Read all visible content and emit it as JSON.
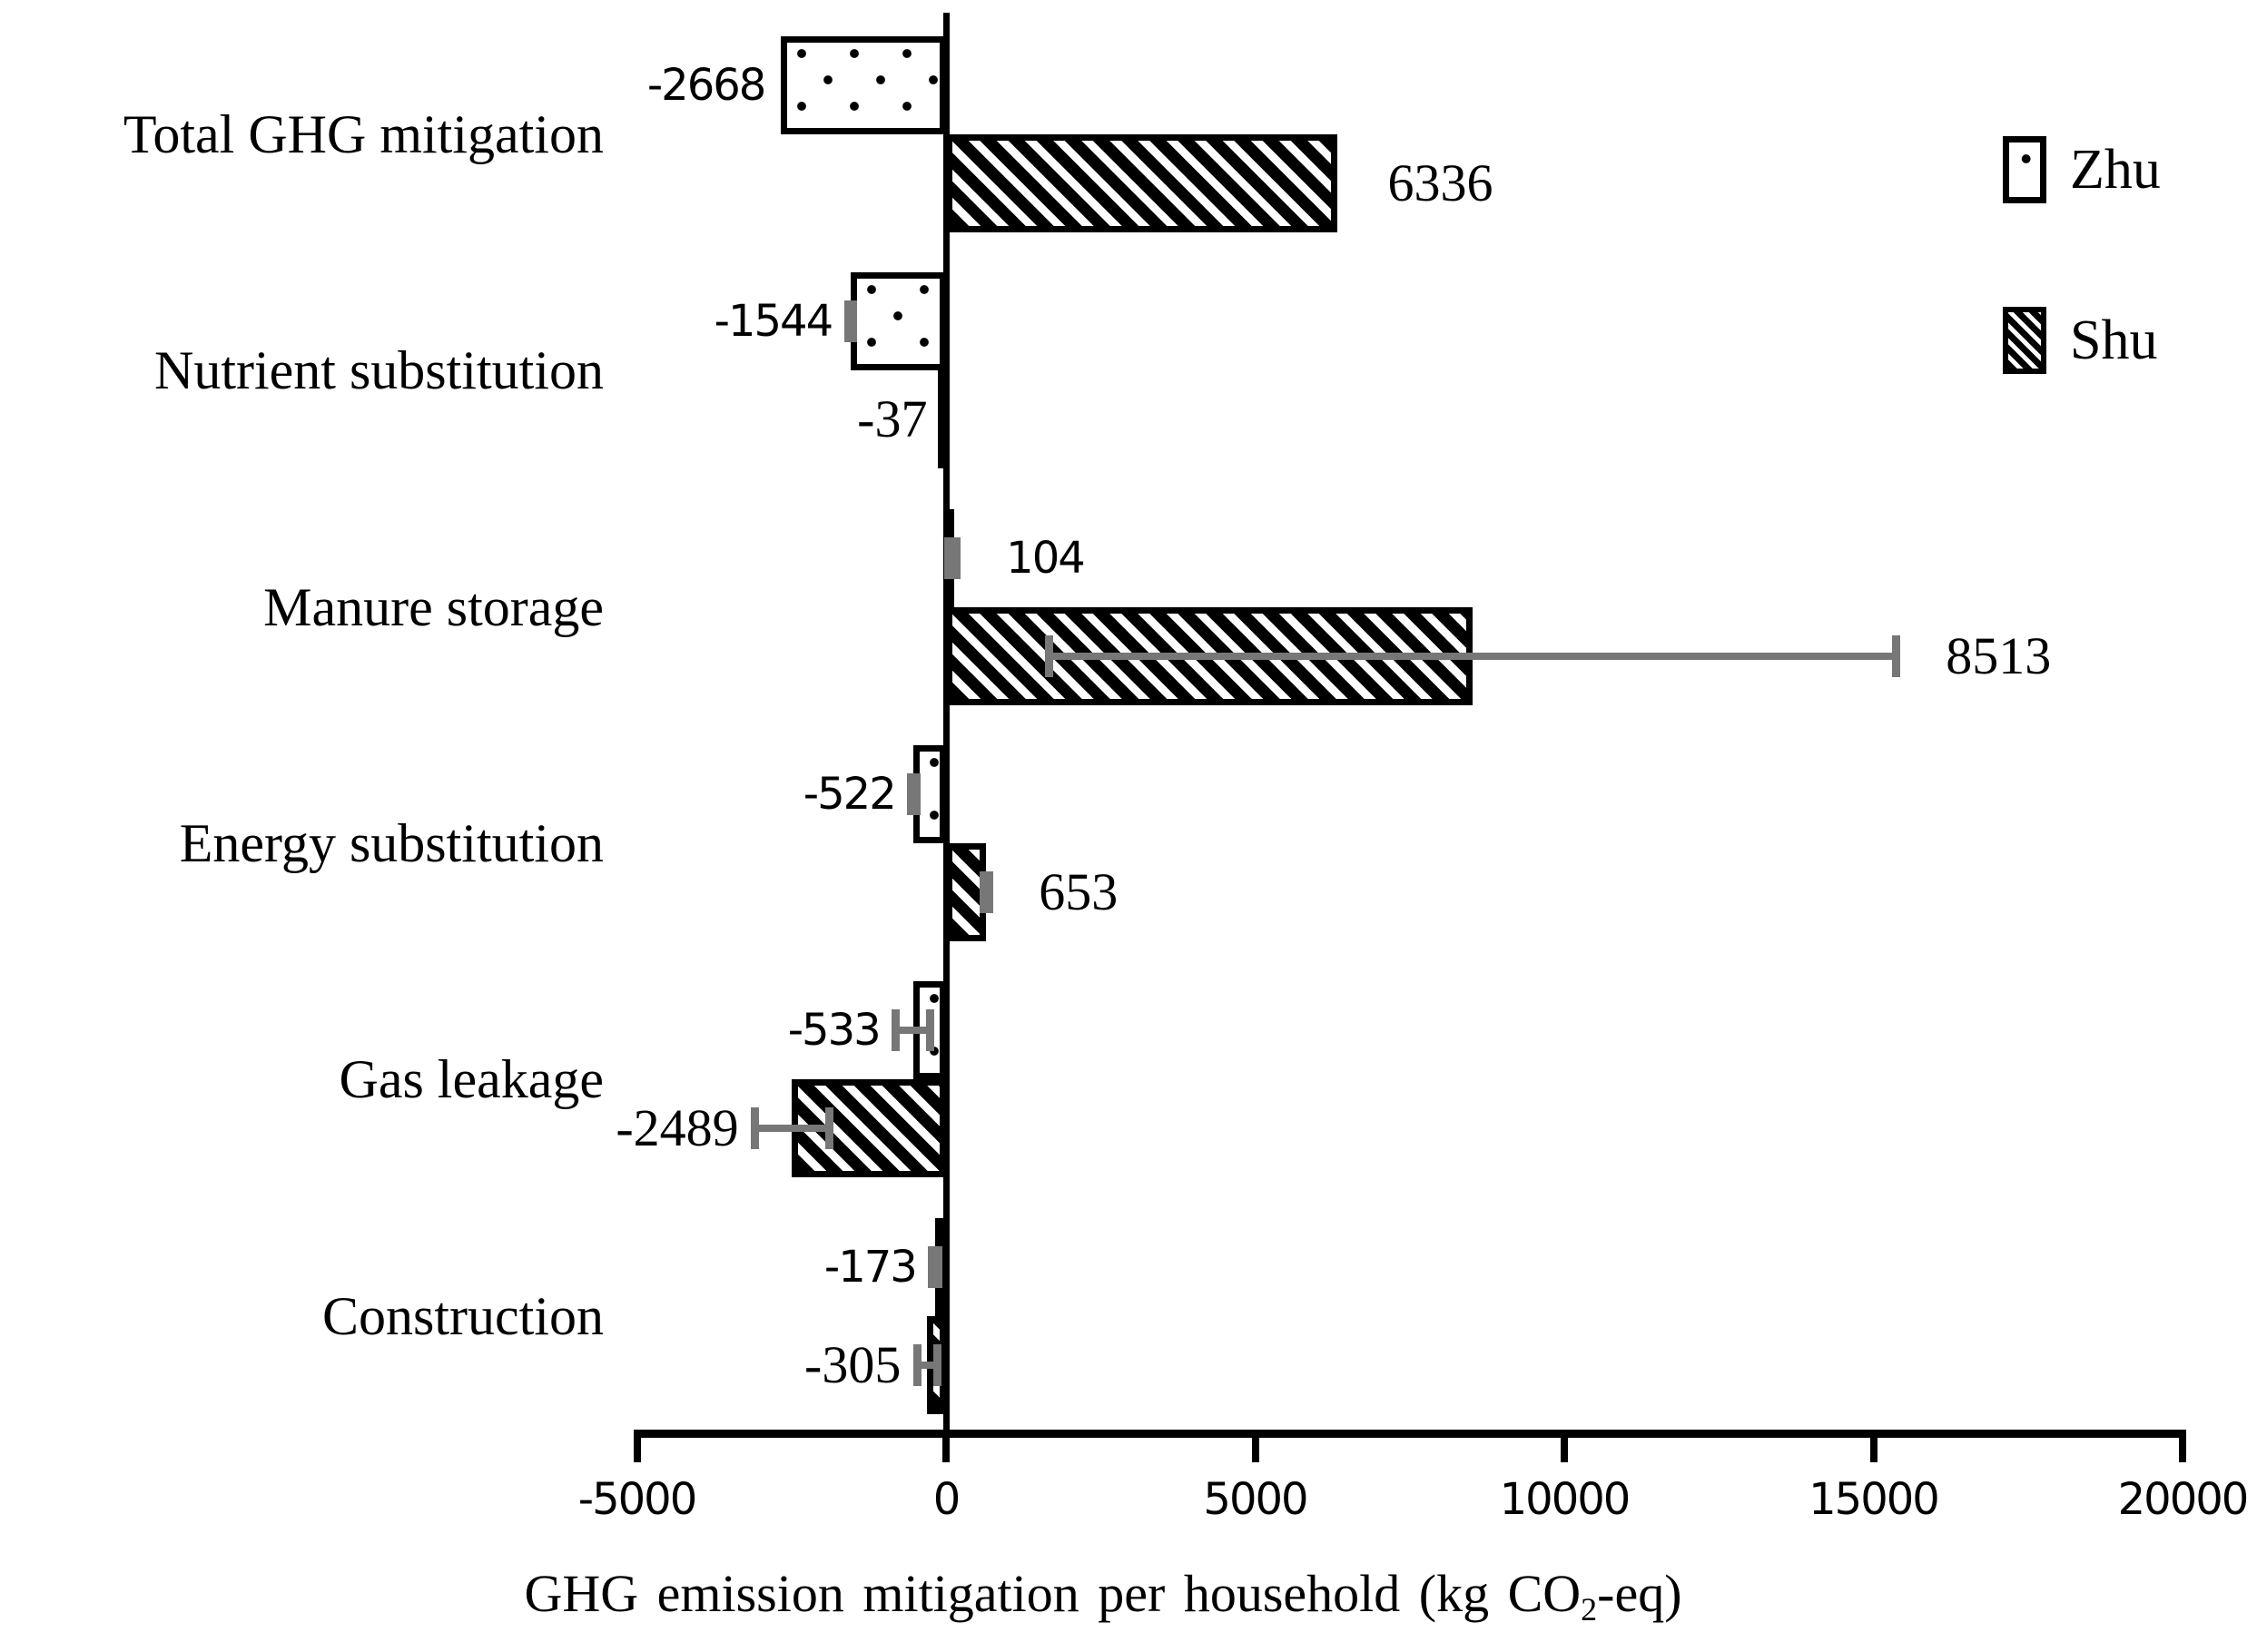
{
  "chart_data": {
    "type": "bar",
    "orientation": "horizontal",
    "title": "",
    "xlabel": "GHG emission mitigation per household (kg CO2-eq)",
    "ylabel": "",
    "categories": [
      "Total GHG mitigation",
      "Nutrient substitution",
      "Manure storage",
      "Energy substitution",
      "Gas leakage",
      "Construction"
    ],
    "series": [
      {
        "name": "Zhu",
        "pattern": "dotted",
        "values": [
          -2668,
          -1544,
          104,
          -522,
          -533,
          -173
        ],
        "data_labels": [
          "-2668",
          "-1544",
          "104",
          "-522",
          "-533",
          "-173"
        ],
        "errors": [
          null,
          40,
          60,
          40,
          280,
          50
        ]
      },
      {
        "name": "Shu",
        "pattern": "diagonal-hatch",
        "values": [
          6336,
          -37,
          8513,
          653,
          -2489,
          -305
        ],
        "data_labels": [
          "6336",
          "-37",
          "8513",
          "653",
          "-2489",
          "-305"
        ],
        "errors": [
          null,
          null,
          6850,
          40,
          600,
          160
        ]
      }
    ],
    "x_ticks": [
      -5000,
      0,
      5000,
      10000,
      15000,
      20000
    ],
    "x_tick_labels": [
      "-5000",
      "0",
      "5000",
      "10000",
      "15000",
      "20000"
    ],
    "xlim": [
      -5000,
      20000
    ],
    "grid": false,
    "legend_position": "top-right",
    "colors": {
      "bar_fill": "#ffffff",
      "bar_border": "#000000",
      "error_bar": "#777777",
      "text": "#000000"
    }
  },
  "legend": {
    "items": [
      {
        "label": "Zhu",
        "pattern": "dotted"
      },
      {
        "label": "Shu",
        "pattern": "diagonal-hatch"
      }
    ]
  },
  "xaxis_title": {
    "pre": "GHG emission mitigation per household (kg CO",
    "sub": "2",
    "post": "-eq)"
  }
}
